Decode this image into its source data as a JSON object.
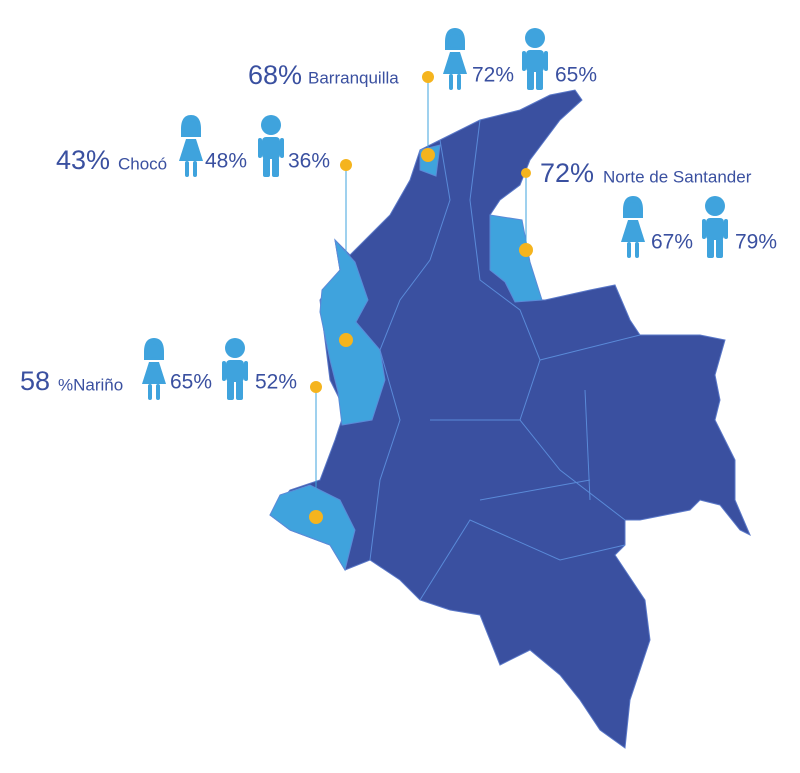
{
  "callouts": [
    {
      "percent": "68%",
      "place": "Barranquilla",
      "girls": "72%",
      "boys": "65%"
    },
    {
      "percent": "43%",
      "place": "Chocó",
      "girls": "48%",
      "boys": "36%"
    },
    {
      "percent": "72%",
      "place": "Norte de Santander",
      "girls": "67%",
      "boys": "79%"
    },
    {
      "percent": "58",
      "place": "%Nariño",
      "girls": "65%",
      "boys": "52%"
    }
  ]
}
